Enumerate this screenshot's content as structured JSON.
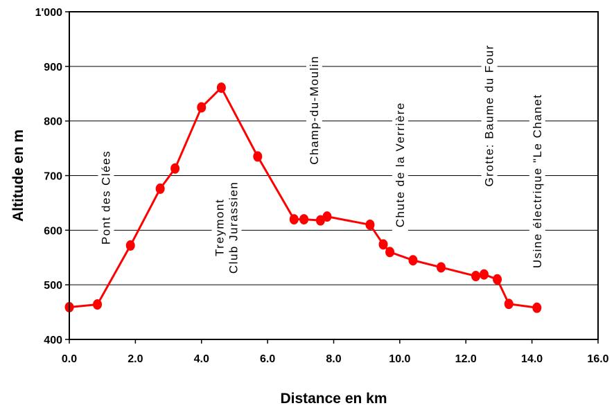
{
  "chart_data": {
    "type": "line",
    "title": "",
    "xlabel": "Distance en km",
    "ylabel": "Altitude en m",
    "xlim": [
      0,
      16
    ],
    "ylim": [
      400,
      1000
    ],
    "x_ticks": [
      "0.0",
      "2.0",
      "4.0",
      "6.0",
      "8.0",
      "10.0",
      "12.0",
      "14.0",
      "16.0"
    ],
    "y_ticks": [
      "400",
      "500",
      "600",
      "700",
      "800",
      "900",
      "1'000"
    ],
    "grid": "horizontal",
    "series": [
      {
        "color": "#ff0000",
        "points": [
          [
            0.0,
            459
          ],
          [
            0.85,
            464
          ],
          [
            1.85,
            572
          ],
          [
            2.75,
            676
          ],
          [
            3.2,
            713
          ],
          [
            4.0,
            825
          ],
          [
            4.6,
            861
          ],
          [
            5.7,
            735
          ],
          [
            6.8,
            620
          ],
          [
            7.1,
            620
          ],
          [
            7.6,
            618
          ],
          [
            7.8,
            625
          ],
          [
            9.1,
            610
          ],
          [
            9.5,
            574
          ],
          [
            9.7,
            560
          ],
          [
            10.4,
            545
          ],
          [
            11.25,
            532
          ],
          [
            12.3,
            516
          ],
          [
            12.55,
            519
          ],
          [
            12.95,
            510
          ],
          [
            13.3,
            465
          ],
          [
            14.15,
            458
          ]
        ]
      }
    ],
    "annotations": [
      {
        "lines": [
          "Pont des Clées"
        ],
        "x": 1.1,
        "y": 660
      },
      {
        "lines": [
          "Treymont",
          "Club Jurassien"
        ],
        "x": 4.75,
        "y": 605
      },
      {
        "lines": [
          "Champ-du-Moulin"
        ],
        "x": 7.4,
        "y": 820
      },
      {
        "lines": [
          "Chute de la Verrière"
        ],
        "x": 10.0,
        "y": 720
      },
      {
        "lines": [
          "Grotte: Baume du Four"
        ],
        "x": 12.7,
        "y": 810
      },
      {
        "lines": [
          "Usine électrique \"Le Chanet"
        ],
        "x": 14.15,
        "y": 690
      }
    ]
  }
}
